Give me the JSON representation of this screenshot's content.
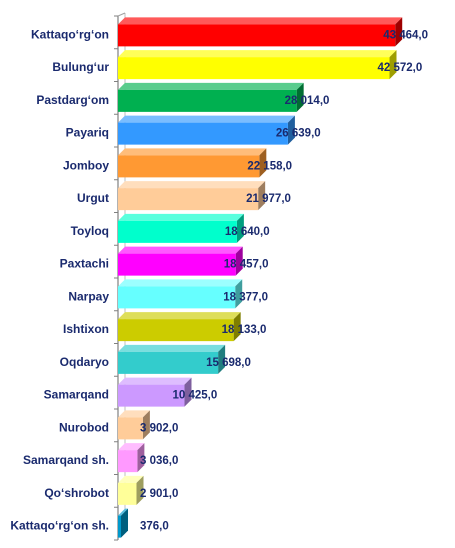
{
  "chart_data": {
    "type": "bar",
    "orientation": "horizontal",
    "grid": false,
    "legend": "none",
    "title": "",
    "xlabel": "",
    "ylabel": "",
    "xlim": [
      0,
      45000
    ],
    "categories": [
      "Kattaqo‘rg‘on",
      "Bulung‘ur",
      "Pastdarg‘om",
      "Payariq",
      "Jomboy",
      "Urgut",
      "Toyloq",
      "Paxtachi",
      "Narpay",
      "Ishtixon",
      "Oqdaryo",
      "Samarqand",
      "Nurobod",
      "Samarqand sh.",
      "Qo‘shrobot",
      "Kattaqo‘rg‘on sh."
    ],
    "values": [
      43464.0,
      42572.0,
      28014.0,
      26639.0,
      22158.0,
      21977.0,
      18640.0,
      18457.0,
      18377.0,
      18133.0,
      15698.0,
      10425.0,
      3902.0,
      3036.0,
      2901.0,
      376.0
    ],
    "value_labels": [
      "43 464,0",
      "42 572,0",
      "28 014,0",
      "26 639,0",
      "22 158,0",
      "21 977,0",
      "18 640,0",
      "18 457,0",
      "18 377,0",
      "18 133,0",
      "15 698,0",
      "10 425,0",
      "3 902,0",
      "3 036,0",
      "2 901,0",
      "376,0"
    ],
    "colors": [
      "#ff0000",
      "#ffff00",
      "#00b050",
      "#3399ff",
      "#ff9933",
      "#ffcc99",
      "#00ffcc",
      "#ff00ff",
      "#66ffff",
      "#cccc00",
      "#33cccc",
      "#cc99ff",
      "#ffcc99",
      "#ff99ff",
      "#ffff99",
      "#0099cc"
    ]
  }
}
